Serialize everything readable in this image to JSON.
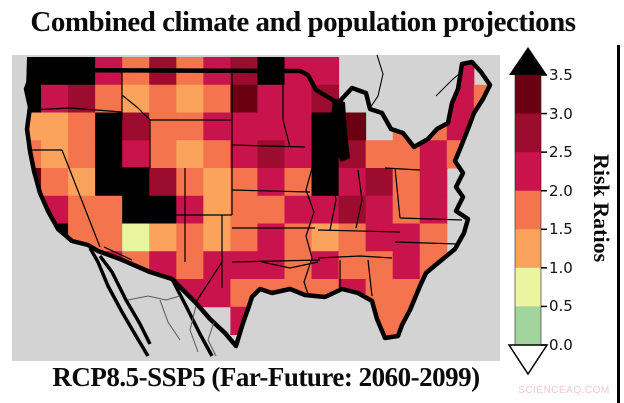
{
  "title": "Combined climate and population projections",
  "caption": "RCP8.5-SSP5 (Far-Future: 2060-2099)",
  "watermark": "SCIENCEAQ.COM",
  "map": {
    "ocean_color": "#d3d3d3",
    "border_color": "#000000"
  },
  "colorbar": {
    "label": "Risk Ratios",
    "ticks": [
      "3.5",
      "3.0",
      "2.5",
      "2.0",
      "1.5",
      "1.0",
      "0.5",
      "0.0"
    ],
    "over_color": "#000000",
    "under_color": "#ffffff",
    "segments": [
      {
        "range": "3.0-3.5",
        "color": "#6b0012"
      },
      {
        "range": "2.5-3.0",
        "color": "#9c0c2e"
      },
      {
        "range": "2.0-2.5",
        "color": "#c9134d"
      },
      {
        "range": "1.5-2.0",
        "color": "#f3744d"
      },
      {
        "range": "1.0-1.5",
        "color": "#fba35d"
      },
      {
        "range": "0.5-1.0",
        "color": "#e9f5a1"
      },
      {
        "range": "0.0-0.5",
        "color": "#a2d59e"
      }
    ]
  },
  "chart_data": {
    "type": "heatmap",
    "title": "Combined climate and population projections",
    "subtitle": "RCP8.5-SSP5 (Far-Future: 2060-2099)",
    "variable": "Risk Ratios",
    "colorbar_ticks": [
      3.5,
      3.0,
      2.5,
      2.0,
      1.5,
      1.0,
      0.5,
      0.0
    ],
    "colorbar_range": [
      0.0,
      3.5
    ],
    "legend_position": "right",
    "value_bins": {
      "K": "> 3.5",
      "D": "3.0-3.5",
      "R": "2.5-3.0",
      "C": "2.0-2.5",
      "O": "1.5-2.0",
      "L": "1.0-1.5",
      "Y": "0.5-1.0",
      "G": "0.0-0.5",
      ".": "no data"
    },
    "palette": {
      "K": "#000000",
      "D": "#6b0012",
      "R": "#9c0c2e",
      "C": "#c9134d",
      "O": "#f3744d",
      "L": "#fba35d",
      "Y": "#e9f5a1",
      "G": "#a2d59e"
    },
    "grid_rows": [
      "KKKCOROCRKCC....C.",
      "KCROLOLODCCR..OOCO",
      "LLOKROOCCCCKD.OOC.",
      "OLOKCOLOCRCKROOCO.",
      "DOLKKROLOCOKCROC..",
      "CCOOKKCLOOCCRCOC..",
      "DKOOYLOLOCOLOCCO..",
      ".KCCOCOCCCOCOOCO..",
      "....CDCCOOOOCOO...",
      "........C....OO...",
      ".............OO..."
    ]
  }
}
